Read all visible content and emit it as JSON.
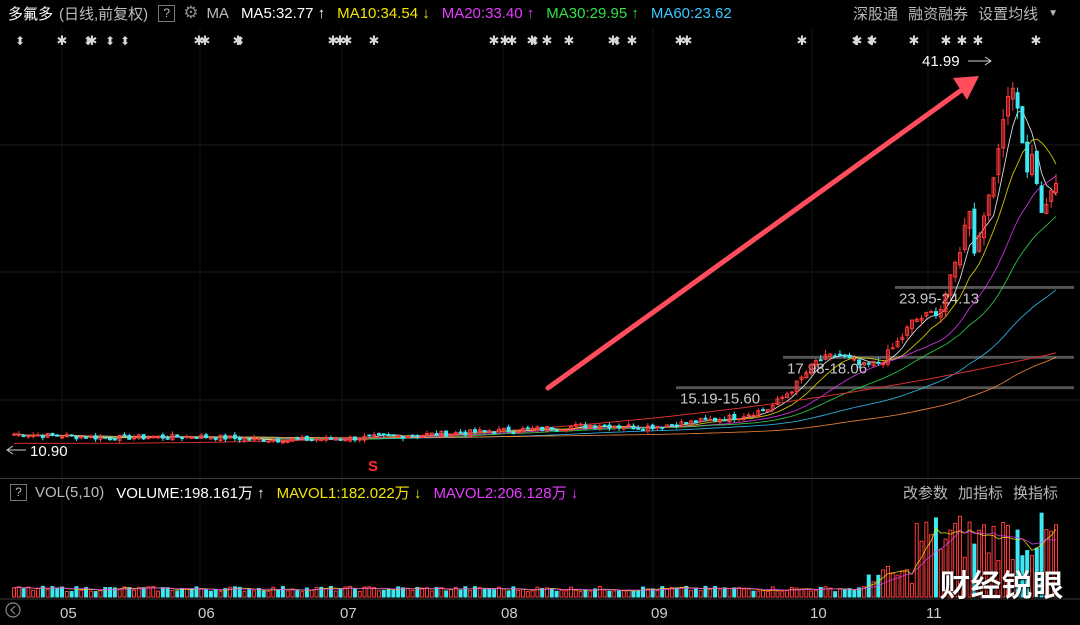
{
  "header": {
    "stock_name": "多氟多",
    "period": "(日线,前复权)",
    "help": "?",
    "ma_label": "MA",
    "ma": [
      {
        "text": "MA5:32.77",
        "arrow": "↑",
        "color": "#ffffff"
      },
      {
        "text": "MA10:34.54",
        "arrow": "↓",
        "color": "#f2e600"
      },
      {
        "text": "MA20:33.40",
        "arrow": "↑",
        "color": "#e63cff"
      },
      {
        "text": "MA30:29.95",
        "arrow": "↑",
        "color": "#33e04a"
      },
      {
        "text": "MA60:23.62",
        "arrow": "",
        "color": "#37c8ff"
      }
    ],
    "links": [
      "深股通",
      "融资融券",
      "设置均线"
    ]
  },
  "volume_header": {
    "help": "?",
    "label": "VOL(5,10)",
    "volume": {
      "text": "VOLUME:198.161万",
      "arrow": "↑",
      "color": "#ffffff"
    },
    "mavol1": {
      "text": "MAVOL1:182.022万",
      "arrow": "↓",
      "color": "#f2e600"
    },
    "mavol2": {
      "text": "MAVOL2:206.128万",
      "arrow": "↓",
      "color": "#e63cff"
    },
    "links": [
      "改参数",
      "加指标",
      "换指标"
    ]
  },
  "watermark": "财经锐眼",
  "chart_data": {
    "type": "candlestick",
    "x_ticks": [
      "05",
      "06",
      "07",
      "08",
      "09",
      "10",
      "11"
    ],
    "ylim": [
      9.0,
      44.5
    ],
    "annotations": {
      "high_label": "41.99",
      "low_label": "10.90",
      "ranges": [
        "23.95-24.13",
        "17.98-18.06",
        "15.19-15.60"
      ],
      "signal_marker": "S"
    },
    "colors": {
      "up": "#ff3b3b",
      "down": "#3ee8f2",
      "arrow": "#ff4d5e",
      "marker": "#d8d8d8"
    }
  }
}
